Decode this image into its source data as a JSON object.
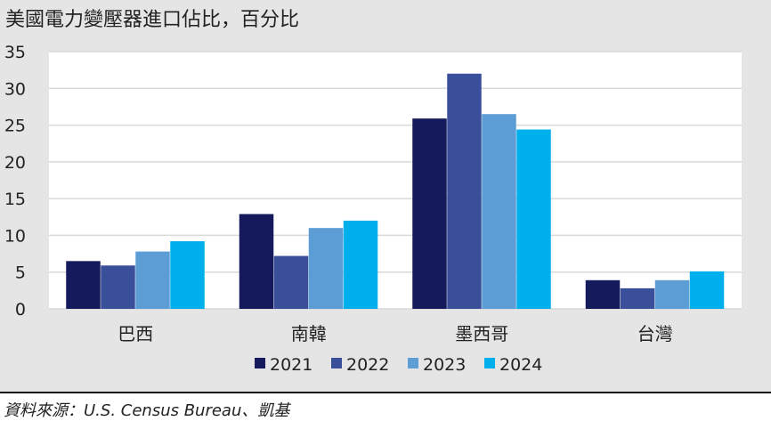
{
  "title": "美國電力變壓器進口佔比，百分比",
  "source": "資料來源：U.S. Census Bureau、凱基",
  "chart_data": {
    "type": "bar",
    "title": "美國電力變壓器進口佔比，百分比",
    "categories": [
      "巴西",
      "南韓",
      "墨西哥",
      "台灣"
    ],
    "series": [
      {
        "name": "2021",
        "color": "#141a5c",
        "values": [
          6.5,
          12.9,
          25.9,
          3.9
        ]
      },
      {
        "name": "2022",
        "color": "#3a4f9a",
        "values": [
          5.9,
          7.2,
          32.0,
          2.8
        ]
      },
      {
        "name": "2023",
        "color": "#5d9dd6",
        "values": [
          7.8,
          11.0,
          26.5,
          3.9
        ]
      },
      {
        "name": "2024",
        "color": "#00b0ec",
        "values": [
          9.2,
          12.0,
          24.4,
          5.1
        ]
      }
    ],
    "yticks": [
      "0",
      "5",
      "10",
      "15",
      "20",
      "25",
      "30",
      "35"
    ],
    "ylim": [
      0,
      35
    ],
    "grid": true,
    "legend": "bottom"
  }
}
